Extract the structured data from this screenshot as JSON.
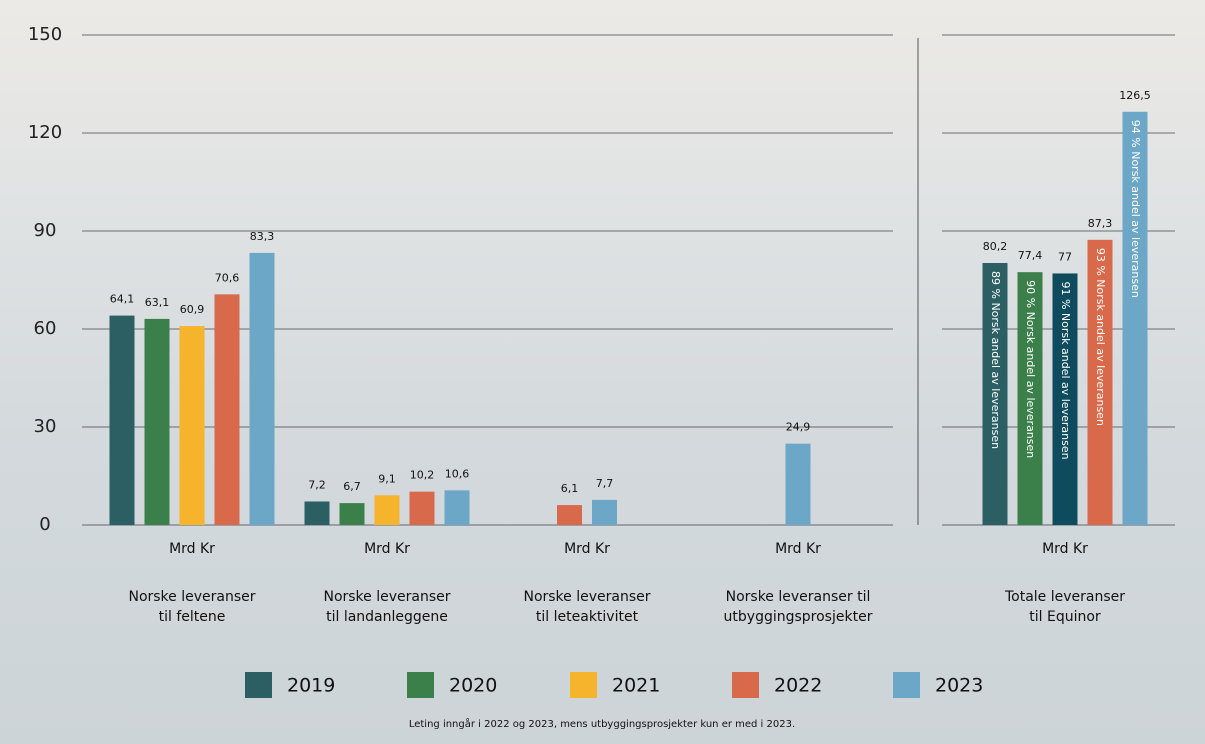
{
  "chart_data": {
    "type": "bar",
    "categories": [
      "Norske leveranser\ntil feltene",
      "Norske leveranser\ntil landanleggene",
      "Norske leveranser\ntil leteaktivitet",
      "Norske leveranser til\nutbyggingsprosjekter",
      "Totale leveranser\ntil Equinor"
    ],
    "unit_label": "Mrd Kr",
    "series": [
      {
        "name": "2019",
        "color": "#2b5f64",
        "values": [
          64.1,
          7.2,
          null,
          null,
          80.2
        ],
        "value_labels": [
          "64,1",
          "7,2",
          null,
          null,
          "80,2"
        ],
        "inner_labels": [
          null,
          null,
          null,
          null,
          "89 % Norsk andel av leveransen"
        ]
      },
      {
        "name": "2020",
        "color": "#3b7f4b",
        "values": [
          63.1,
          6.7,
          null,
          null,
          77.4
        ],
        "value_labels": [
          "63,1",
          "6,7",
          null,
          null,
          "77,4"
        ],
        "inner_labels": [
          null,
          null,
          null,
          null,
          "90 % Norsk andel av leveransen"
        ]
      },
      {
        "name": "2021",
        "color": "#f6b42c",
        "values": [
          60.9,
          9.1,
          null,
          null,
          77
        ],
        "value_labels": [
          "60,9",
          "9,1",
          null,
          null,
          "77"
        ],
        "inner_labels": [
          null,
          null,
          null,
          null,
          "91 % Norsk andel av leveransen"
        ],
        "color_overrides": {
          "4": "#0e4b5d"
        }
      },
      {
        "name": "2022",
        "color": "#d8694a",
        "values": [
          70.6,
          10.2,
          6.1,
          null,
          87.3
        ],
        "value_labels": [
          "70,6",
          "10,2",
          "6,1",
          null,
          "87,3"
        ],
        "inner_labels": [
          null,
          null,
          null,
          null,
          "93 % Norsk andel av leveransen"
        ]
      },
      {
        "name": "2023",
        "color": "#6ca7c8",
        "values": [
          83.3,
          10.6,
          7.7,
          24.9,
          126.5
        ],
        "value_labels": [
          "83,3",
          "10,6",
          "7,7",
          "24,9",
          "126,5"
        ],
        "inner_labels": [
          null,
          null,
          null,
          null,
          "94 % Norsk andel av leveransen"
        ]
      }
    ],
    "ylim": [
      0,
      150
    ],
    "yticks": [
      0,
      30,
      60,
      90,
      120,
      150
    ],
    "grid": true,
    "footnote": "Leting inngår i 2022 og 2023, mens utbyggingsprosjekter kun er med i 2023."
  }
}
